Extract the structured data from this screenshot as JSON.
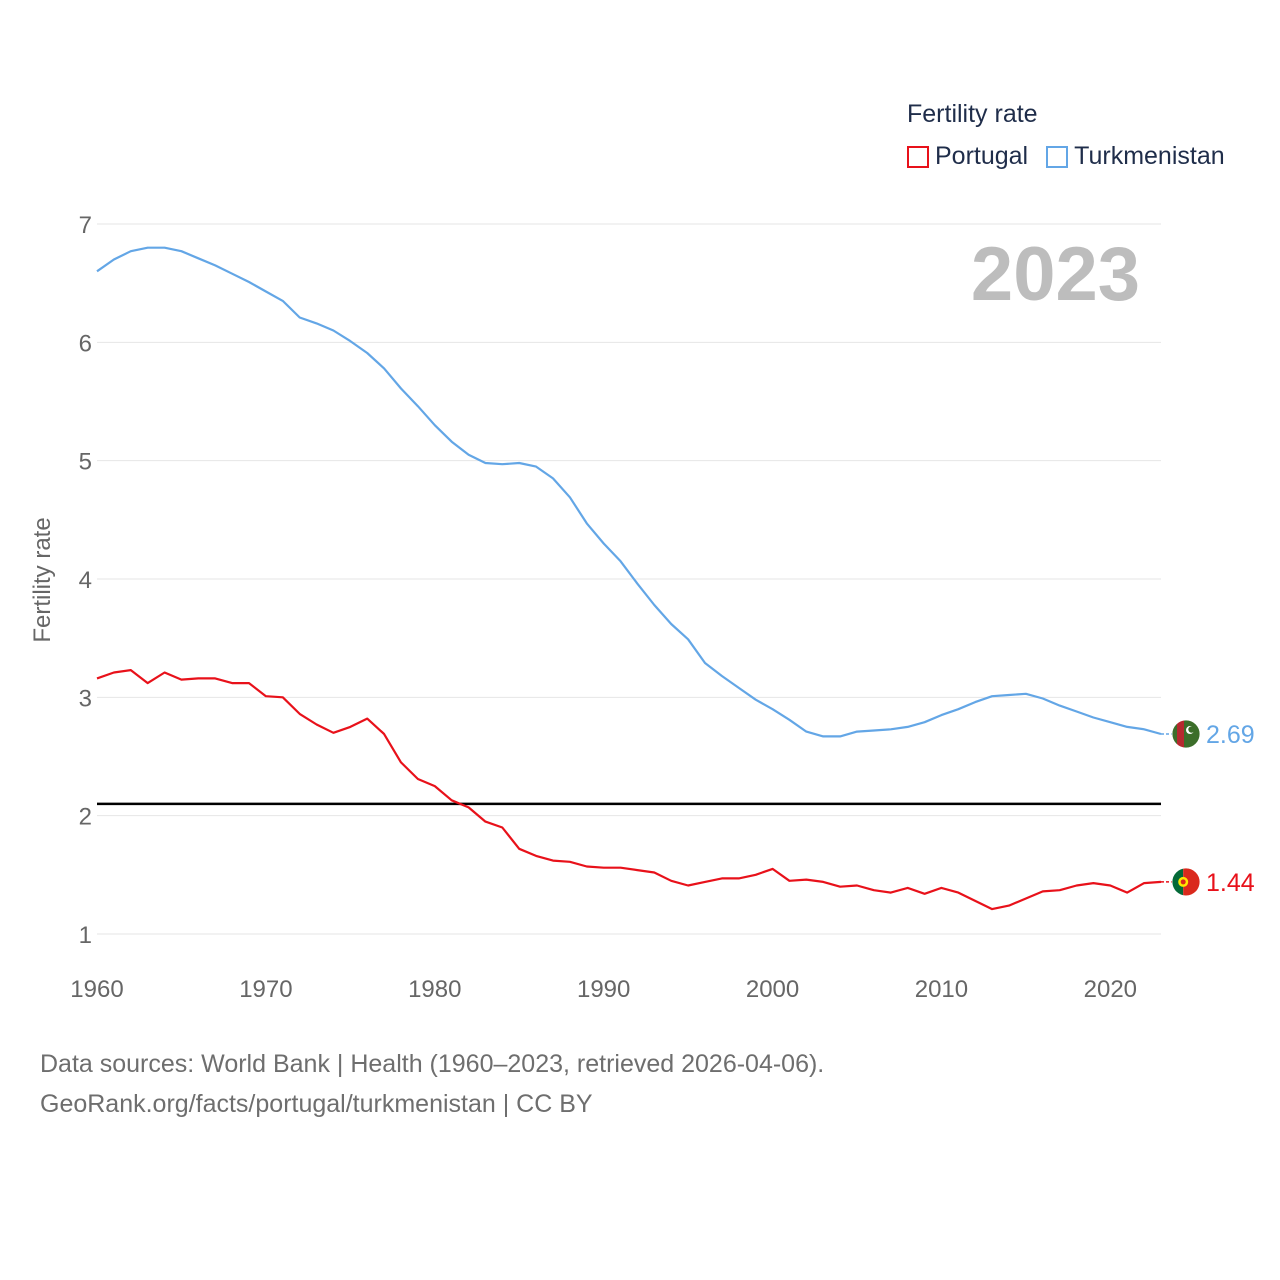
{
  "legend": {
    "title": "Fertility rate",
    "items": [
      {
        "name": "Portugal",
        "color": "#e8111a"
      },
      {
        "name": "Turkmenistan",
        "color": "#63a6e6"
      }
    ]
  },
  "footer": {
    "line1": "Data sources: World Bank | Health (1960–2023, retrieved 2026-04-06).",
    "line2": "GeoRank.org/facts/portugal/turkmenistan | CC BY"
  },
  "colors": {
    "portugal": "#e8111a",
    "turkmenistan": "#63a6e6",
    "reference": "#000000",
    "grid": "#e6e6e6",
    "text": "#666666",
    "watermark": "#bdbdbd"
  },
  "chart_data": {
    "type": "line",
    "title": "",
    "year_watermark": "2023",
    "xlabel": "",
    "ylabel": "Fertility rate",
    "xlim": [
      1960,
      2023
    ],
    "ylim": [
      1,
      7
    ],
    "x_ticks": [
      1960,
      1970,
      1980,
      1990,
      2000,
      2010,
      2020
    ],
    "y_ticks": [
      1,
      2,
      3,
      4,
      5,
      6,
      7
    ],
    "grid": true,
    "legend_position": "top-right",
    "reference_line": {
      "y": 2.1,
      "color": "#000000"
    },
    "x": [
      1960,
      1961,
      1962,
      1963,
      1964,
      1965,
      1966,
      1967,
      1968,
      1969,
      1970,
      1971,
      1972,
      1973,
      1974,
      1975,
      1976,
      1977,
      1978,
      1979,
      1980,
      1981,
      1982,
      1983,
      1984,
      1985,
      1986,
      1987,
      1988,
      1989,
      1990,
      1991,
      1992,
      1993,
      1994,
      1995,
      1996,
      1997,
      1998,
      1999,
      2000,
      2001,
      2002,
      2003,
      2004,
      2005,
      2006,
      2007,
      2008,
      2009,
      2010,
      2011,
      2012,
      2013,
      2014,
      2015,
      2016,
      2017,
      2018,
      2019,
      2020,
      2021,
      2022,
      2023
    ],
    "series": [
      {
        "name": "Portugal",
        "color": "#e8111a",
        "end_label": "1.44",
        "values": [
          3.16,
          3.21,
          3.23,
          3.12,
          3.21,
          3.15,
          3.16,
          3.16,
          3.12,
          3.12,
          3.01,
          3.0,
          2.86,
          2.77,
          2.7,
          2.75,
          2.82,
          2.69,
          2.45,
          2.31,
          2.25,
          2.13,
          2.07,
          1.95,
          1.9,
          1.72,
          1.66,
          1.62,
          1.61,
          1.57,
          1.56,
          1.56,
          1.54,
          1.52,
          1.45,
          1.41,
          1.44,
          1.47,
          1.47,
          1.5,
          1.55,
          1.45,
          1.46,
          1.44,
          1.4,
          1.41,
          1.37,
          1.35,
          1.39,
          1.34,
          1.39,
          1.35,
          1.28,
          1.21,
          1.24,
          1.3,
          1.36,
          1.37,
          1.41,
          1.43,
          1.41,
          1.35,
          1.43,
          1.44
        ]
      },
      {
        "name": "Turkmenistan",
        "color": "#63a6e6",
        "end_label": "2.69",
        "values": [
          6.6,
          6.7,
          6.77,
          6.8,
          6.8,
          6.77,
          6.71,
          6.65,
          6.58,
          6.51,
          6.43,
          6.35,
          6.21,
          6.16,
          6.1,
          6.01,
          5.91,
          5.78,
          5.61,
          5.46,
          5.3,
          5.16,
          5.05,
          4.98,
          4.97,
          4.98,
          4.95,
          4.85,
          4.69,
          4.47,
          4.3,
          4.15,
          3.96,
          3.78,
          3.62,
          3.49,
          3.29,
          3.18,
          3.08,
          2.98,
          2.9,
          2.81,
          2.71,
          2.67,
          2.67,
          2.71,
          2.72,
          2.73,
          2.75,
          2.79,
          2.85,
          2.9,
          2.96,
          3.01,
          3.02,
          3.03,
          2.99,
          2.93,
          2.88,
          2.83,
          2.79,
          2.75,
          2.73,
          2.69
        ]
      }
    ]
  }
}
